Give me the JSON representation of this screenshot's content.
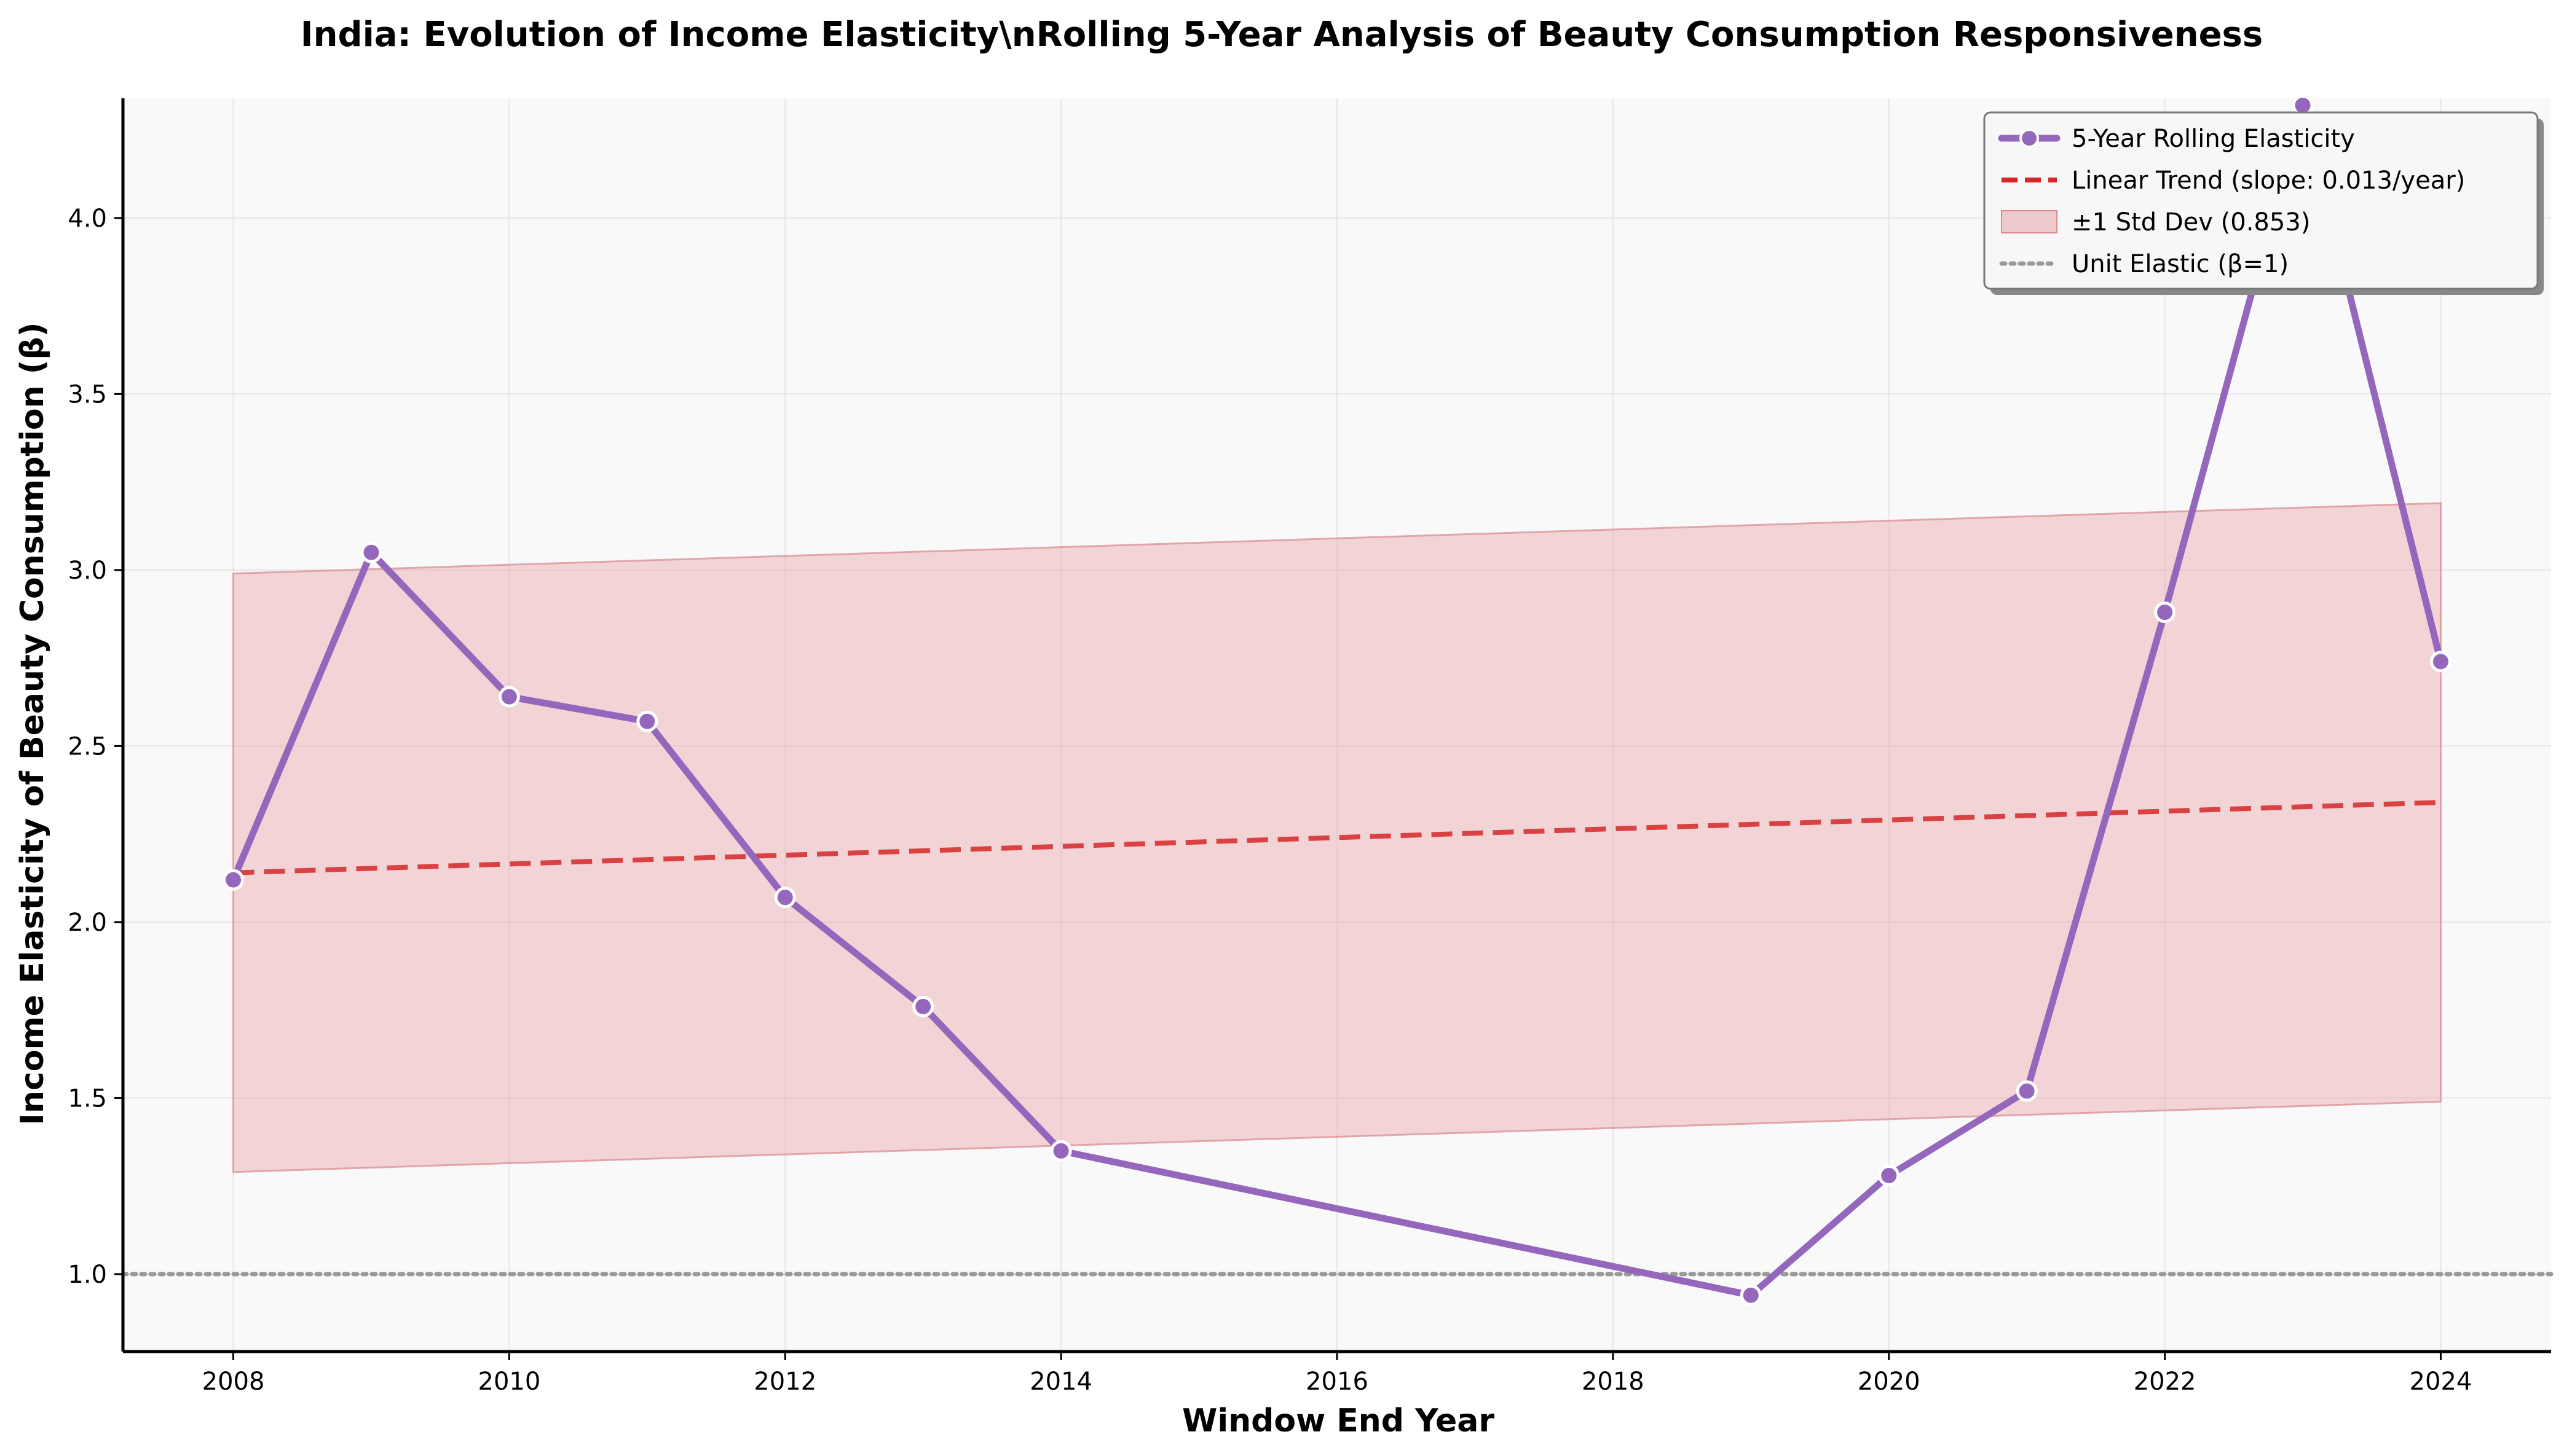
{
  "chart_data": {
    "type": "line",
    "title": "India: Evolution of Income Elasticity\\nRolling 5-Year Analysis of Beauty Consumption Responsiveness",
    "xlabel": "Window End Year",
    "ylabel": "Income Elasticity of Beauty Consumption (β)",
    "xlim": [
      2007.2,
      2024.8
    ],
    "ylim": [
      0.78,
      4.34
    ],
    "x_ticks": [
      2008,
      2010,
      2012,
      2014,
      2016,
      2018,
      2020,
      2022,
      2024
    ],
    "y_ticks": [
      1.0,
      1.5,
      2.0,
      2.5,
      3.0,
      3.5,
      4.0
    ],
    "grid": true,
    "legend_position": "top-right",
    "series": [
      {
        "name": "5-Year Rolling Elasticity",
        "kind": "line-markers",
        "color": "#9467bd",
        "x": [
          2008,
          2009,
          2010,
          2011,
          2012,
          2013,
          2014,
          2019,
          2020,
          2021,
          2022,
          2023,
          2024
        ],
        "y": [
          2.12,
          3.05,
          2.64,
          2.57,
          2.07,
          1.76,
          1.35,
          0.94,
          1.28,
          1.52,
          2.88,
          4.32,
          2.74
        ]
      },
      {
        "name": "Linear Trend (slope: 0.013/year)",
        "kind": "dashed-line",
        "color": "#d62728",
        "x": [
          2008,
          2024
        ],
        "y": [
          2.14,
          2.34
        ]
      },
      {
        "name": "±1 Std Dev (0.853)",
        "kind": "band",
        "color": "#e8a6ab",
        "x": [
          2008,
          2024
        ],
        "upper": [
          2.99,
          3.19
        ],
        "lower": [
          1.29,
          1.49
        ]
      },
      {
        "name": "Unit Elastic (β=1)",
        "kind": "dotted-hline",
        "color": "#999999",
        "y": 1.0
      }
    ]
  }
}
